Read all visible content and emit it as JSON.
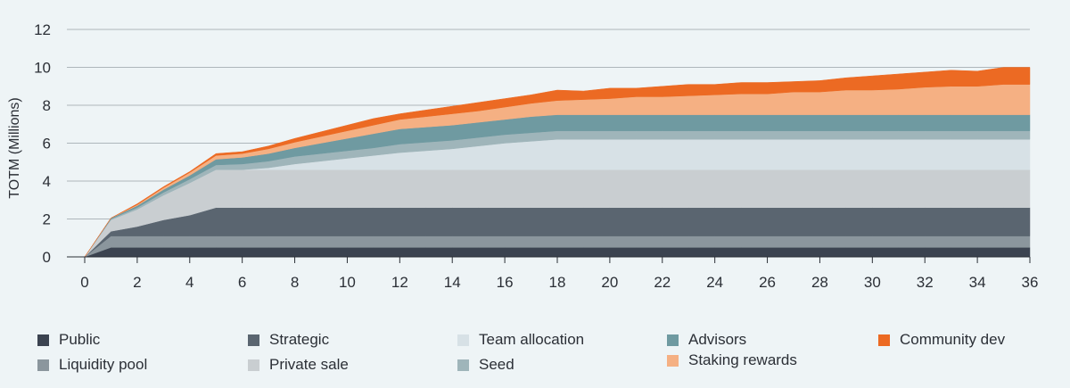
{
  "chart_data": {
    "type": "area",
    "stacked": true,
    "title": "",
    "xlabel": "",
    "ylabel": "TOTM (Millions)",
    "xlim": [
      0,
      36
    ],
    "ylim": [
      0,
      12
    ],
    "xticks": [
      "0",
      "2",
      "4",
      "6",
      "8",
      "10",
      "12",
      "14",
      "16",
      "18",
      "20",
      "22",
      "24",
      "26",
      "28",
      "30",
      "32",
      "34",
      "36"
    ],
    "yticks": [
      "0",
      "2",
      "4",
      "6",
      "8",
      "10",
      "12"
    ],
    "grid": "horizontal",
    "legend_position": "bottom",
    "x": [
      0,
      1,
      2,
      3,
      4,
      5,
      6,
      7,
      8,
      9,
      10,
      11,
      12,
      13,
      14,
      15,
      16,
      17,
      18,
      19,
      20,
      21,
      22,
      23,
      24,
      25,
      26,
      27,
      28,
      29,
      30,
      31,
      32,
      33,
      34,
      35,
      36
    ],
    "series": [
      {
        "name": "Public",
        "color": "#3b4350",
        "values": [
          0,
          0.5,
          0.5,
          0.5,
          0.5,
          0.5,
          0.5,
          0.5,
          0.5,
          0.5,
          0.5,
          0.5,
          0.5,
          0.5,
          0.5,
          0.5,
          0.5,
          0.5,
          0.5,
          0.5,
          0.5,
          0.5,
          0.5,
          0.5,
          0.5,
          0.5,
          0.5,
          0.5,
          0.5,
          0.5,
          0.5,
          0.5,
          0.5,
          0.5,
          0.5,
          0.5,
          0.5
        ]
      },
      {
        "name": "Liquidity pool",
        "color": "#8b969d",
        "values": [
          0,
          0.6,
          0.6,
          0.6,
          0.6,
          0.6,
          0.6,
          0.6,
          0.6,
          0.6,
          0.6,
          0.6,
          0.6,
          0.6,
          0.6,
          0.6,
          0.6,
          0.6,
          0.6,
          0.6,
          0.6,
          0.6,
          0.6,
          0.6,
          0.6,
          0.6,
          0.6,
          0.6,
          0.6,
          0.6,
          0.6,
          0.6,
          0.6,
          0.6,
          0.6,
          0.6,
          0.6
        ]
      },
      {
        "name": "Strategic",
        "color": "#5a6570",
        "values": [
          0,
          0.25,
          0.5,
          0.85,
          1.1,
          1.5,
          1.5,
          1.5,
          1.5,
          1.5,
          1.5,
          1.5,
          1.5,
          1.5,
          1.5,
          1.5,
          1.5,
          1.5,
          1.5,
          1.5,
          1.5,
          1.5,
          1.5,
          1.5,
          1.5,
          1.5,
          1.5,
          1.5,
          1.5,
          1.5,
          1.5,
          1.5,
          1.5,
          1.5,
          1.5,
          1.5,
          1.5
        ]
      },
      {
        "name": "Private sale",
        "color": "#c9ced1",
        "values": [
          0,
          0.6,
          0.9,
          1.3,
          1.7,
          2.0,
          2.0,
          2.0,
          2.0,
          2.0,
          2.0,
          2.0,
          2.0,
          2.0,
          2.0,
          2.0,
          2.0,
          2.0,
          2.0,
          2.0,
          2.0,
          2.0,
          2.0,
          2.0,
          2.0,
          2.0,
          2.0,
          2.0,
          2.0,
          2.0,
          2.0,
          2.0,
          2.0,
          2.0,
          2.0,
          2.0,
          2.0
        ]
      },
      {
        "name": "Team allocation",
        "color": "#d7e1e6",
        "values": [
          0,
          0,
          0,
          0,
          0,
          0,
          0,
          0.1,
          0.3,
          0.45,
          0.6,
          0.75,
          0.9,
          1.0,
          1.1,
          1.25,
          1.4,
          1.5,
          1.6,
          1.6,
          1.6,
          1.6,
          1.6,
          1.6,
          1.6,
          1.6,
          1.6,
          1.6,
          1.6,
          1.6,
          1.6,
          1.6,
          1.6,
          1.6,
          1.6,
          1.6,
          1.6
        ]
      },
      {
        "name": "Seed",
        "color": "#9fb5ba",
        "values": [
          0,
          0.05,
          0.1,
          0.15,
          0.2,
          0.25,
          0.3,
          0.35,
          0.4,
          0.4,
          0.4,
          0.4,
          0.45,
          0.45,
          0.45,
          0.45,
          0.45,
          0.45,
          0.45,
          0.45,
          0.45,
          0.45,
          0.45,
          0.45,
          0.45,
          0.45,
          0.45,
          0.45,
          0.45,
          0.45,
          0.45,
          0.45,
          0.45,
          0.45,
          0.45,
          0.45,
          0.45
        ]
      },
      {
        "name": "Advisors",
        "color": "#6f9aa1",
        "values": [
          0,
          0.05,
          0.1,
          0.15,
          0.2,
          0.3,
          0.35,
          0.4,
          0.45,
          0.55,
          0.65,
          0.75,
          0.8,
          0.8,
          0.8,
          0.8,
          0.8,
          0.85,
          0.85,
          0.85,
          0.85,
          0.85,
          0.85,
          0.85,
          0.85,
          0.85,
          0.85,
          0.85,
          0.85,
          0.85,
          0.85,
          0.85,
          0.85,
          0.85,
          0.85,
          0.85,
          0.85
        ]
      },
      {
        "name": "Staking rewards",
        "color": "#f5b083",
        "values": [
          0,
          0,
          0.05,
          0.1,
          0.15,
          0.2,
          0.2,
          0.25,
          0.3,
          0.35,
          0.4,
          0.45,
          0.5,
          0.55,
          0.6,
          0.6,
          0.65,
          0.7,
          0.75,
          0.8,
          0.85,
          0.95,
          0.95,
          1.0,
          1.05,
          1.1,
          1.1,
          1.2,
          1.2,
          1.3,
          1.3,
          1.35,
          1.45,
          1.5,
          1.5,
          1.6,
          1.6
        ]
      },
      {
        "name": "Community dev",
        "color": "#ec6a23",
        "values": [
          0,
          0,
          0.05,
          0.05,
          0.05,
          0.1,
          0.1,
          0.15,
          0.2,
          0.25,
          0.3,
          0.35,
          0.3,
          0.35,
          0.4,
          0.45,
          0.45,
          0.45,
          0.55,
          0.45,
          0.55,
          0.45,
          0.55,
          0.6,
          0.55,
          0.6,
          0.6,
          0.55,
          0.6,
          0.65,
          0.75,
          0.8,
          0.8,
          0.85,
          0.8,
          0.9,
          0.9
        ]
      }
    ]
  }
}
